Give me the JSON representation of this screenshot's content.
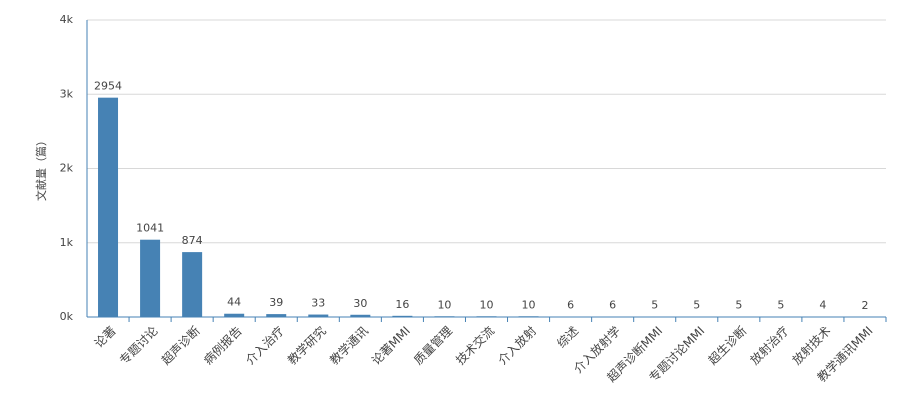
{
  "chart_data": {
    "type": "bar",
    "y_label": "文献量（篇）",
    "categories": [
      "论著",
      "专题讨论",
      "超声诊断",
      "病例报告",
      "介入治疗",
      "教学研究",
      "教学通讯",
      "论著MMⅠ",
      "质量管理",
      "技术交流",
      "介入放射",
      "综述",
      "介入放射学",
      "超声诊断MMⅠ",
      "专题讨论MMⅠ",
      "超生诊断",
      "放射治疗",
      "放射技术",
      "教学通讯MMⅠ"
    ],
    "values": [
      2954,
      1041,
      874,
      44,
      39,
      33,
      30,
      16,
      10,
      10,
      10,
      6,
      6,
      5,
      5,
      5,
      5,
      4,
      2
    ],
    "color": "#4682b4",
    "ylim": [
      0,
      4000
    ],
    "yticks": [
      {
        "value": 0,
        "label": "0k"
      },
      {
        "value": 1000,
        "label": "1k"
      },
      {
        "value": 2000,
        "label": "2k"
      },
      {
        "value": 3000,
        "label": "3k"
      },
      {
        "value": 4000,
        "label": "4k"
      }
    ],
    "grid": true
  }
}
